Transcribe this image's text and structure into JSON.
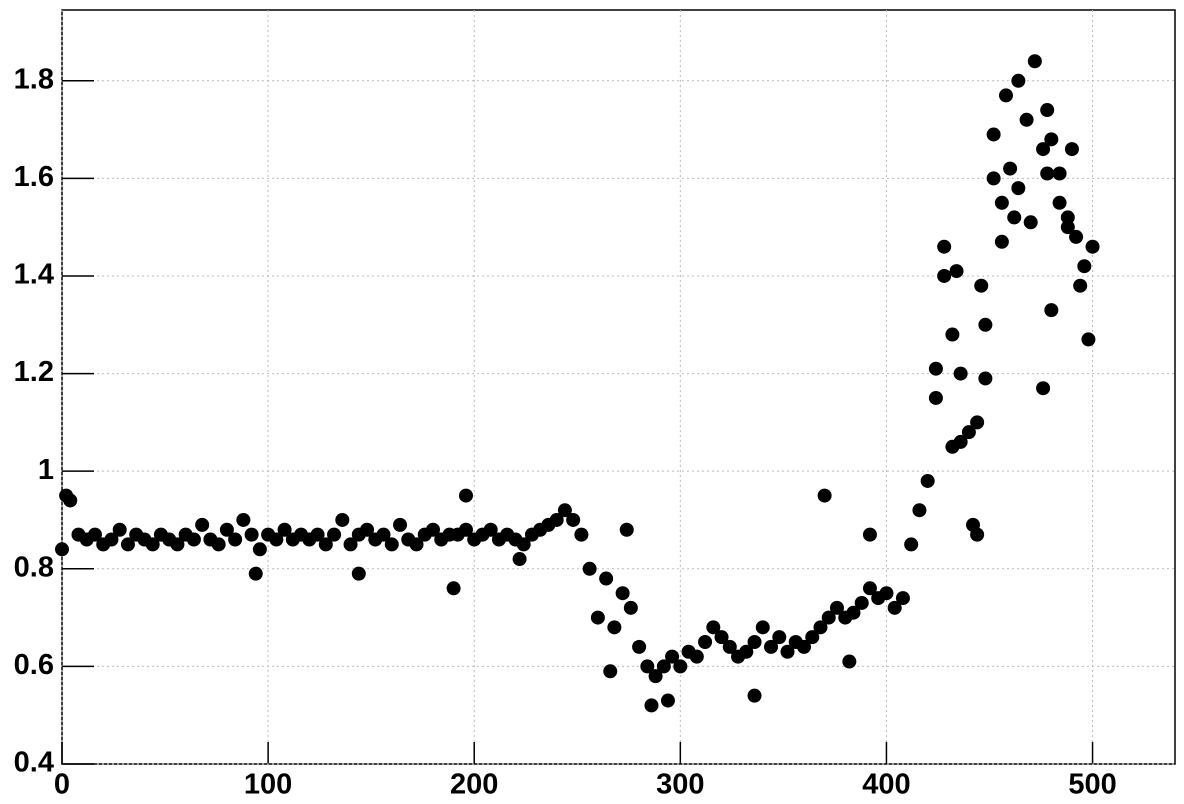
{
  "chart_data": {
    "type": "scatter",
    "color": "#000000",
    "grid": true,
    "xlim": [
      0,
      540
    ],
    "ylim": [
      0.4,
      1.945
    ],
    "xticks": [
      0,
      100,
      200,
      300,
      400,
      500
    ],
    "yticks": [
      0.4,
      0.6,
      0.8,
      1,
      1.2,
      1.4,
      1.6,
      1.8
    ],
    "x": [
      0,
      4,
      8,
      12,
      16,
      20,
      24,
      28,
      32,
      36,
      40,
      44,
      48,
      52,
      56,
      60,
      64,
      68,
      72,
      76,
      80,
      84,
      88,
      92,
      96,
      100,
      104,
      108,
      112,
      116,
      120,
      124,
      128,
      132,
      136,
      140,
      144,
      148,
      152,
      156,
      160,
      164,
      168,
      172,
      176,
      180,
      184,
      188,
      192,
      196,
      200,
      204,
      208,
      212,
      216,
      220,
      224,
      228,
      232,
      236,
      240,
      244,
      248,
      252,
      256,
      260,
      264,
      268,
      272,
      276,
      280,
      284,
      288,
      292,
      296,
      300,
      304,
      308,
      312,
      316,
      320,
      324,
      328,
      332,
      336,
      340,
      344,
      348,
      352,
      356,
      360,
      364,
      368,
      372,
      376,
      380,
      384,
      388,
      392,
      396,
      400,
      404,
      408,
      412,
      416,
      420,
      424,
      428,
      432,
      436,
      440,
      444,
      448,
      452,
      456,
      460,
      464,
      468,
      472,
      476,
      480,
      484,
      488,
      492,
      496,
      500,
      2,
      94,
      144,
      190,
      196,
      222,
      266,
      274,
      286,
      294,
      336,
      370,
      382,
      392,
      424,
      428,
      432,
      434,
      436,
      442,
      444,
      446,
      448,
      452,
      456,
      458,
      462,
      464,
      470,
      476,
      478,
      480,
      484,
      490,
      494,
      498,
      478,
      488
    ],
    "y": [
      0.84,
      0.94,
      0.87,
      0.86,
      0.87,
      0.85,
      0.86,
      0.88,
      0.85,
      0.87,
      0.86,
      0.85,
      0.87,
      0.86,
      0.85,
      0.87,
      0.86,
      0.89,
      0.86,
      0.85,
      0.88,
      0.86,
      0.9,
      0.87,
      0.84,
      0.87,
      0.86,
      0.88,
      0.86,
      0.87,
      0.86,
      0.87,
      0.85,
      0.87,
      0.9,
      0.85,
      0.87,
      0.88,
      0.86,
      0.87,
      0.85,
      0.89,
      0.86,
      0.85,
      0.87,
      0.88,
      0.86,
      0.87,
      0.87,
      0.88,
      0.86,
      0.87,
      0.88,
      0.86,
      0.87,
      0.86,
      0.85,
      0.87,
      0.88,
      0.89,
      0.9,
      0.92,
      0.9,
      0.87,
      0.8,
      0.7,
      0.78,
      0.68,
      0.75,
      0.72,
      0.64,
      0.6,
      0.58,
      0.6,
      0.62,
      0.6,
      0.63,
      0.62,
      0.65,
      0.68,
      0.66,
      0.64,
      0.62,
      0.63,
      0.65,
      0.68,
      0.64,
      0.66,
      0.63,
      0.65,
      0.64,
      0.66,
      0.68,
      0.7,
      0.72,
      0.7,
      0.71,
      0.73,
      0.76,
      0.74,
      0.75,
      0.72,
      0.74,
      0.85,
      0.92,
      0.98,
      1.15,
      1.4,
      1.05,
      1.06,
      1.08,
      1.1,
      1.3,
      1.6,
      1.55,
      1.62,
      1.58,
      1.72,
      1.84,
      1.66,
      1.68,
      1.55,
      1.5,
      1.48,
      1.42,
      1.46,
      0.95,
      0.79,
      0.79,
      0.76,
      0.95,
      0.82,
      0.59,
      0.88,
      0.52,
      0.53,
      0.54,
      0.95,
      0.61,
      0.87,
      1.21,
      1.46,
      1.28,
      1.41,
      1.2,
      0.89,
      0.87,
      1.38,
      1.19,
      1.69,
      1.47,
      1.77,
      1.52,
      1.8,
      1.51,
      1.17,
      1.74,
      1.33,
      1.61,
      1.66,
      1.38,
      1.27,
      1.61,
      1.52
    ]
  }
}
